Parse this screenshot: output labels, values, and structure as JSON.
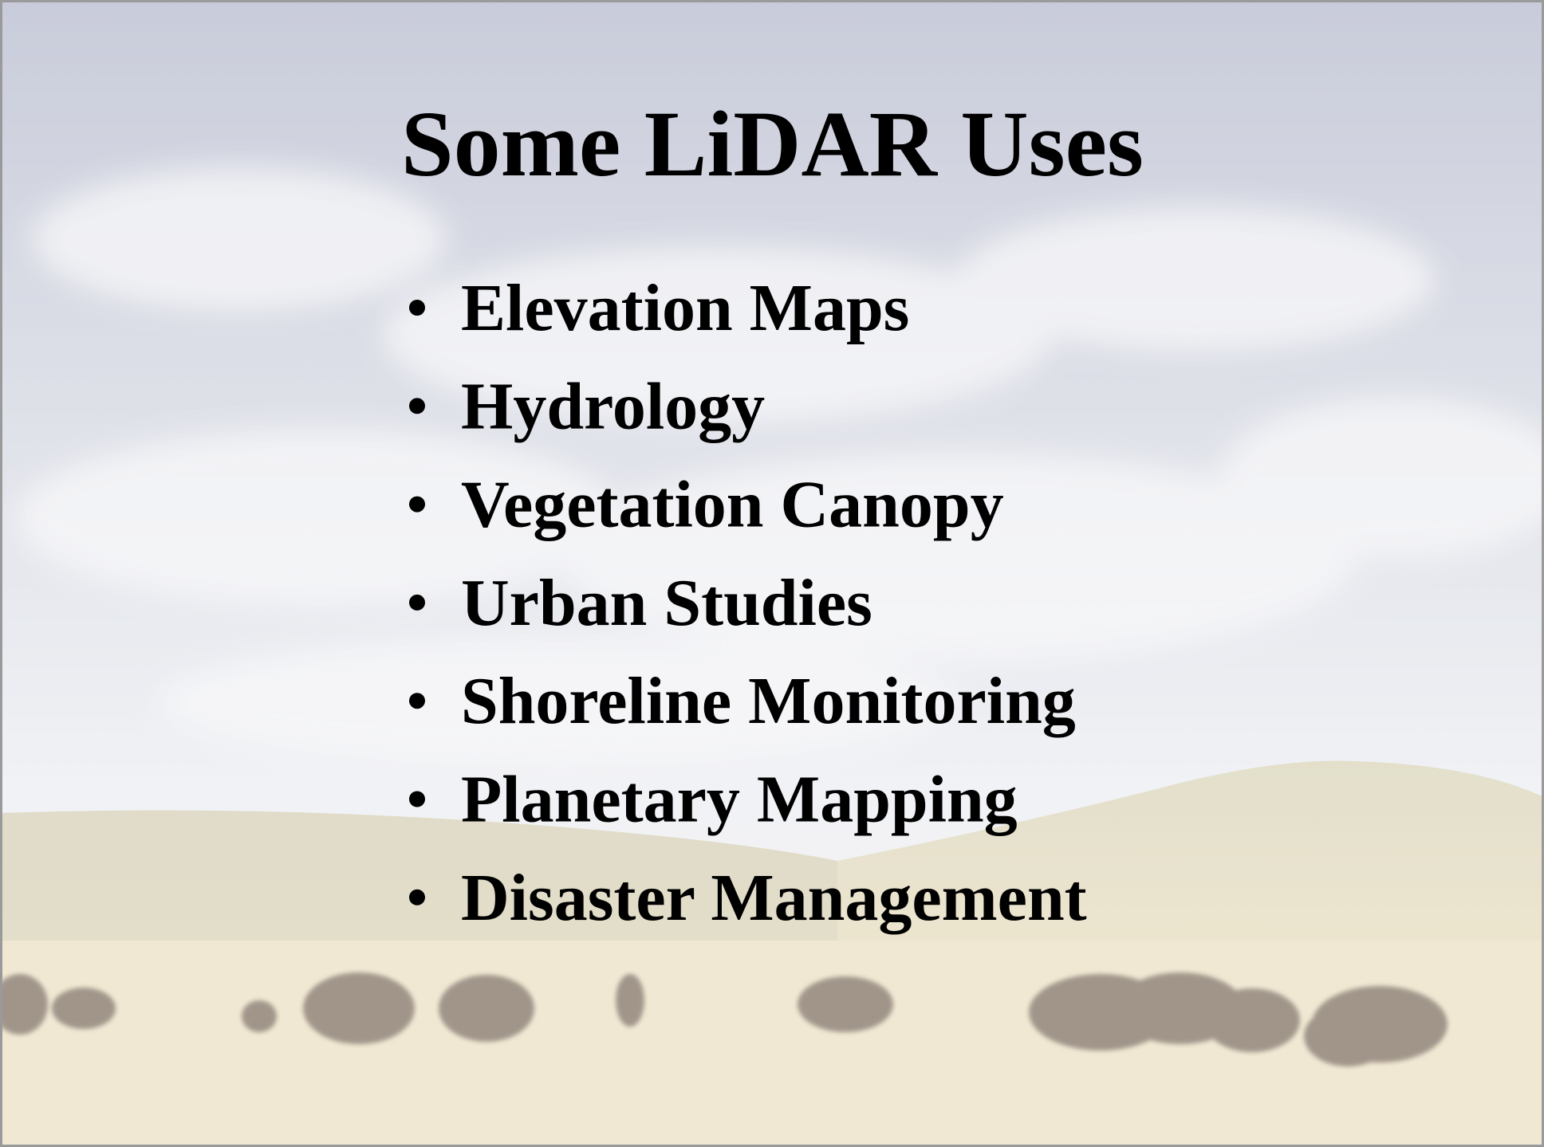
{
  "slide": {
    "title": "Some LiDAR Uses",
    "bullets": [
      "Elevation Maps",
      "Hydrology",
      "Vegetation Canopy",
      "Urban Studies",
      "Shoreline Monitoring",
      "Planetary Mapping",
      "Disaster Management"
    ]
  }
}
